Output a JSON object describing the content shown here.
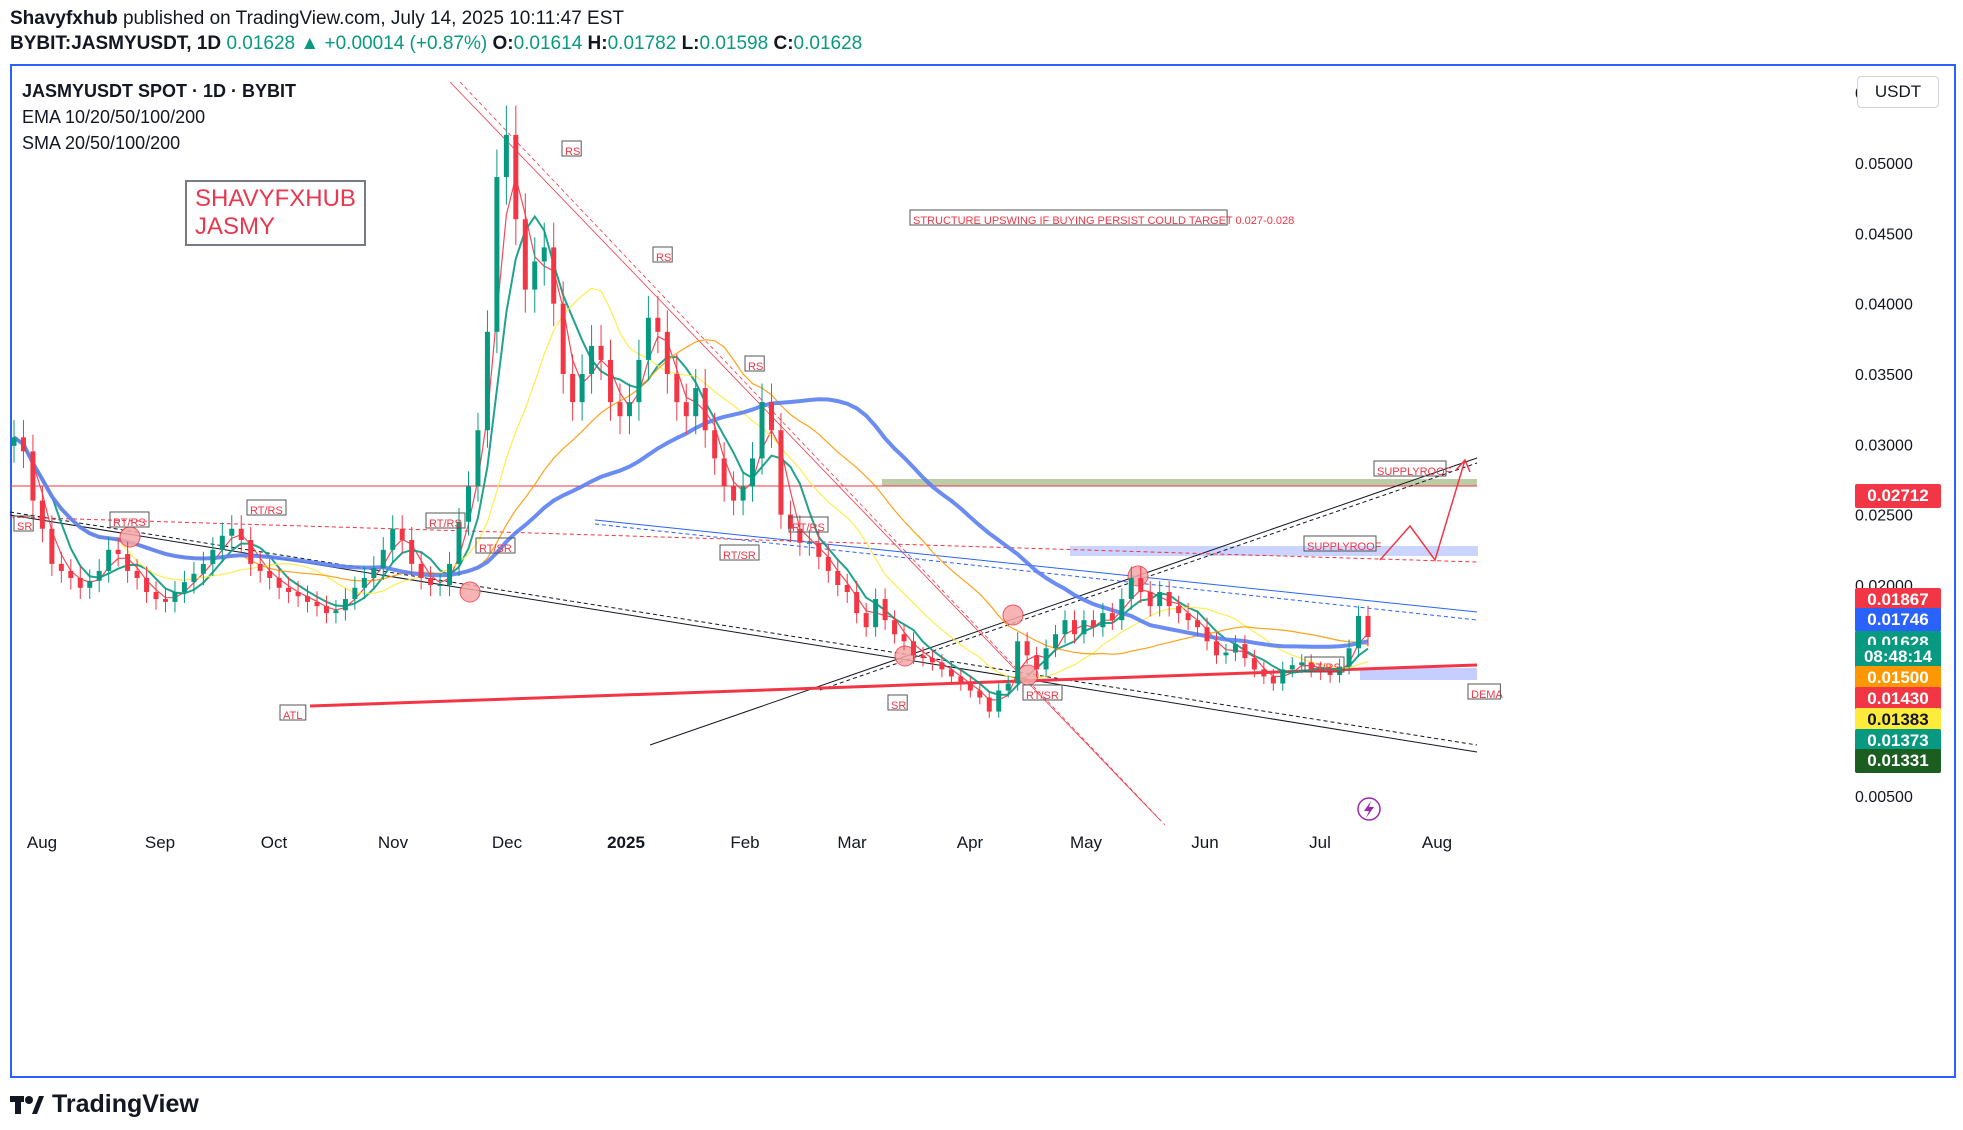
{
  "header": {
    "author": "Shavyfxhub",
    "published": "published on TradingView.com, July 14, 2025 10:11:47 EST",
    "symbol": "BYBIT:JASMYUSDT, 1D",
    "last": "0.01628",
    "change_arrow": "▲",
    "change": "+0.00014 (+0.87%)",
    "o_label": "O:",
    "o": "0.01614",
    "h_label": "H:",
    "h": "0.01782",
    "l_label": "L:",
    "l": "0.01598",
    "c_label": "C:",
    "c": "0.01628"
  },
  "legend": {
    "title": "JASMYUSDT SPOT · 1D · BYBIT",
    "ema": "EMA 10/20/50/100/200",
    "sma": "SMA 20/50/100/200"
  },
  "brand_box": {
    "line1": "SHAVYFXHUB",
    "line2": "JASMY"
  },
  "currency": "USDT",
  "footer": {
    "brand": "TradingView",
    "logo_icon": "tradingview-logo-icon"
  },
  "colors": {
    "up": "#089981",
    "down": "#f23645",
    "accent": "#2962ff",
    "ema_fast": "#f23645",
    "ema_green": "#089981",
    "ma_yellow": "#ffeb3b",
    "ma_orange": "#ff9800",
    "ma_blue": "#5b7ff2",
    "supply": "#6a8f3a",
    "demand": "#8c9eff"
  },
  "chart_data": {
    "type": "candlestick",
    "x_ticks": [
      "Aug",
      "Sep",
      "Oct",
      "Nov",
      "Dec",
      "2025",
      "Feb",
      "Mar",
      "Apr",
      "May",
      "Jun",
      "Jul",
      "Aug"
    ],
    "y_ticks": [
      "0.05500",
      "0.05000",
      "0.04500",
      "0.04000",
      "0.03500",
      "0.03000",
      "0.02500",
      "0.02000",
      "0.00500"
    ],
    "price_labels": [
      {
        "value": "0.02712",
        "color": "#f23645"
      },
      {
        "value": "0.01867",
        "color": "#f23645"
      },
      {
        "value": "0.01746",
        "color": "#2962ff"
      },
      {
        "value": "0.01628",
        "color": "#089981"
      },
      {
        "value": "08:48:14",
        "color": "#089981"
      },
      {
        "value": "0.01500",
        "color": "#ff9800"
      },
      {
        "value": "0.01430",
        "color": "#f23645"
      },
      {
        "value": "0.01383",
        "color": "#ffeb3b"
      },
      {
        "value": "0.01373",
        "color": "#089981"
      },
      {
        "value": "0.01331",
        "color": "#1b5e20"
      }
    ],
    "annotations": [
      {
        "text": "STRUCTURE  UPSWING IF BUYING PERSIST COULD TARGET 0.027-0.028",
        "kind": "note"
      },
      {
        "text": "RS",
        "kind": "tag"
      },
      {
        "text": "RS",
        "kind": "tag"
      },
      {
        "text": "RS",
        "kind": "tag"
      },
      {
        "text": "RT/RS",
        "kind": "tag"
      },
      {
        "text": "RT/RS",
        "kind": "tag"
      },
      {
        "text": "RT/RS",
        "kind": "tag"
      },
      {
        "text": "RT/RS",
        "kind": "tag"
      },
      {
        "text": "RT/RS",
        "kind": "tag"
      },
      {
        "text": "RT/SR",
        "kind": "tag"
      },
      {
        "text": "RT/SR",
        "kind": "tag"
      },
      {
        "text": "RT/SR",
        "kind": "tag"
      },
      {
        "text": "SR",
        "kind": "tag"
      },
      {
        "text": "SR",
        "kind": "tag"
      },
      {
        "text": "ATL",
        "kind": "tag"
      },
      {
        "text": "SUPPLYROOF",
        "kind": "tag"
      },
      {
        "text": "SUPPLYROOF",
        "kind": "tag"
      },
      {
        "text": "DEMA",
        "kind": "tag"
      }
    ],
    "series": [
      {
        "name": "JASMYUSDT",
        "closes": [
          0.0305,
          0.0295,
          0.026,
          0.024,
          0.0215,
          0.021,
          0.0205,
          0.0198,
          0.0203,
          0.021,
          0.0225,
          0.0222,
          0.021,
          0.0205,
          0.0195,
          0.019,
          0.0188,
          0.0195,
          0.0202,
          0.0208,
          0.0215,
          0.0225,
          0.0235,
          0.024,
          0.0232,
          0.0215,
          0.021,
          0.0205,
          0.0198,
          0.0195,
          0.0192,
          0.0188,
          0.0185,
          0.018,
          0.0182,
          0.019,
          0.0198,
          0.0205,
          0.0212,
          0.0225,
          0.024,
          0.0232,
          0.0215,
          0.0205,
          0.02,
          0.02,
          0.0215,
          0.0245,
          0.027,
          0.031,
          0.038,
          0.049,
          0.052,
          0.046,
          0.041,
          0.043,
          0.044,
          0.04,
          0.035,
          0.033,
          0.035,
          0.037,
          0.036,
          0.033,
          0.032,
          0.033,
          0.036,
          0.039,
          0.038,
          0.035,
          0.033,
          0.032,
          0.034,
          0.031,
          0.029,
          0.027,
          0.026,
          0.027,
          0.029,
          0.033,
          0.031,
          0.025,
          0.024,
          0.023,
          0.023,
          0.022,
          0.021,
          0.02,
          0.0195,
          0.018,
          0.017,
          0.019,
          0.0175,
          0.0165,
          0.016,
          0.015,
          0.0148,
          0.0145,
          0.014,
          0.0135,
          0.013,
          0.0125,
          0.012,
          0.011,
          0.0125,
          0.013,
          0.016,
          0.015,
          0.014,
          0.0155,
          0.0165,
          0.0175,
          0.0165,
          0.0175,
          0.017,
          0.018,
          0.0175,
          0.019,
          0.0205,
          0.0195,
          0.0185,
          0.0195,
          0.0185,
          0.018,
          0.0175,
          0.017,
          0.016,
          0.015,
          0.0152,
          0.0158,
          0.0148,
          0.014,
          0.0135,
          0.013,
          0.014,
          0.0143,
          0.0145,
          0.014,
          0.0138,
          0.0136,
          0.0142,
          0.0155,
          0.0178,
          0.0163
        ]
      }
    ]
  }
}
